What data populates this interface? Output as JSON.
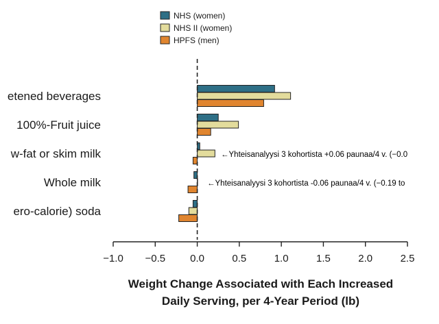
{
  "chart_data": {
    "type": "bar",
    "orientation": "horizontal",
    "categories": [
      "Sugar-sweetened beverages",
      "100%-Fruit juice",
      "Low-fat or skim milk",
      "Whole milk",
      "Diet (zero-calorie) soda"
    ],
    "category_labels_visible": [
      "etened beverages",
      "100%-Fruit juice",
      "w-fat or skim milk",
      "Whole milk",
      "ero-calorie) soda"
    ],
    "series": [
      {
        "name": "NHS (women)",
        "color": "#2e6f86",
        "values": [
          0.92,
          0.25,
          0.03,
          -0.04,
          -0.05
        ]
      },
      {
        "name": "NHS II (women)",
        "color": "#e3dc9c",
        "values": [
          1.11,
          0.49,
          0.21,
          0.0,
          -0.1
        ]
      },
      {
        "name": "HPFS (men)",
        "color": "#e0852f",
        "values": [
          0.79,
          0.16,
          -0.05,
          -0.11,
          -0.22
        ]
      }
    ],
    "xlabel_line1": "Weight Change Associated with Each Increased",
    "xlabel_line2": "Daily Serving, per 4-Year Period (lb)",
    "ylabel": "",
    "xlim": [
      -1.0,
      2.5
    ],
    "xticks": [
      -1.0,
      -0.5,
      0.0,
      0.5,
      1.0,
      1.5,
      2.0,
      2.5
    ],
    "xtick_labels": [
      "−1.0",
      "−0.5",
      "0.0",
      "0.5",
      "1.0",
      "1.5",
      "2.0",
      "2.5"
    ],
    "legend_placement": "top-center",
    "grid": false,
    "reference_line": 0.0,
    "annotations": [
      {
        "category": "Low-fat or skim milk",
        "text": "←Yhteisanalyysi 3 kohortista +0.06 paunaa/4 v. (−0.0"
      },
      {
        "category": "Whole milk",
        "text": "←Yhteisanalyysi 3 kohortista -0.06 paunaa/4 v. (−0.19 to"
      }
    ]
  }
}
